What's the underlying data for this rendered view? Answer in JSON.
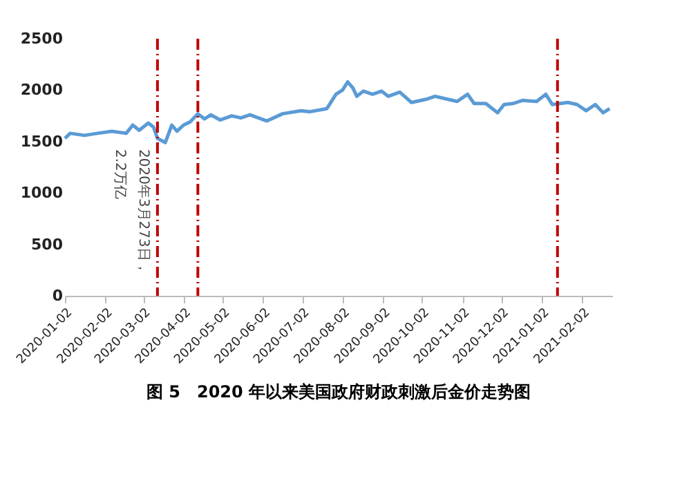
{
  "chart_data": {
    "type": "line",
    "title": "图 5　2020 年以来美国政府财政刺激后金价走势图",
    "annotations": [
      "2020年3月273日，",
      "2.2万亿"
    ],
    "x": [
      "2020-01-02",
      "2020-01-06",
      "2020-01-17",
      "2020-01-27",
      "2020-02-07",
      "2020-02-18",
      "2020-02-23",
      "2020-02-28",
      "2020-03-06",
      "2020-03-10",
      "2020-03-13",
      "2020-03-19",
      "2020-03-24",
      "2020-03-28",
      "2020-04-02",
      "2020-04-07",
      "2020-04-13",
      "2020-04-18",
      "2020-04-23",
      "2020-04-30",
      "2020-05-09",
      "2020-05-16",
      "2020-05-23",
      "2020-06-05",
      "2020-06-17",
      "2020-07-01",
      "2020-07-08",
      "2020-07-21",
      "2020-07-28",
      "2020-08-02",
      "2020-08-06",
      "2020-08-10",
      "2020-08-13",
      "2020-08-18",
      "2020-08-25",
      "2020-09-01",
      "2020-09-06",
      "2020-09-15",
      "2020-09-24",
      "2020-10-05",
      "2020-10-12",
      "2020-10-22",
      "2020-10-29",
      "2020-11-06",
      "2020-11-11",
      "2020-11-20",
      "2020-11-29",
      "2020-12-04",
      "2020-12-11",
      "2020-12-18",
      "2020-12-29",
      "2021-01-05",
      "2021-01-10",
      "2021-01-22",
      "2021-01-29",
      "2021-02-05",
      "2021-02-12",
      "2021-02-18",
      "2021-02-23"
    ],
    "series": [
      {
        "color": "#5b9bd5",
        "values": [
          1530,
          1580,
          1560,
          1580,
          1600,
          1580,
          1660,
          1610,
          1680,
          1640,
          1530,
          1490,
          1660,
          1600,
          1660,
          1690,
          1770,
          1720,
          1760,
          1710,
          1750,
          1730,
          1760,
          1700,
          1770,
          1800,
          1790,
          1820,
          1960,
          2000,
          2080,
          2020,
          1940,
          1990,
          1960,
          1990,
          1940,
          1980,
          1880,
          1910,
          1940,
          1910,
          1890,
          1960,
          1870,
          1870,
          1780,
          1860,
          1870,
          1900,
          1890,
          1960,
          1860,
          1880,
          1860,
          1800,
          1860,
          1780,
          1820
        ]
      }
    ],
    "xlim": [
      "2020-01-02",
      "2021-02-25"
    ],
    "xticks": [
      "2020-01-02",
      "2020-02-02",
      "2020-03-02",
      "2020-04-02",
      "2020-05-02",
      "2020-06-02",
      "2020-07-02",
      "2020-08-02",
      "2020-09-02",
      "2020-10-02",
      "2020-11-02",
      "2020-12-02",
      "2021-01-02",
      "2021-02-02"
    ],
    "ylim": [
      0,
      2500
    ],
    "yticks": [
      0,
      500,
      1000,
      1500,
      2000,
      2500
    ],
    "ref_lines": [
      {
        "axis": "x",
        "value": "2020-03-13",
        "color": "#c00000",
        "line_style": "dashdot"
      },
      {
        "axis": "x",
        "value": "2020-04-13",
        "color": "#c00000",
        "line_style": "dashdot"
      },
      {
        "axis": "x",
        "value": "2021-01-14",
        "color": "#c00000",
        "line_style": "dashdot"
      }
    ],
    "grid": false,
    "legend": false,
    "marker": "none",
    "line_style": "solid"
  }
}
